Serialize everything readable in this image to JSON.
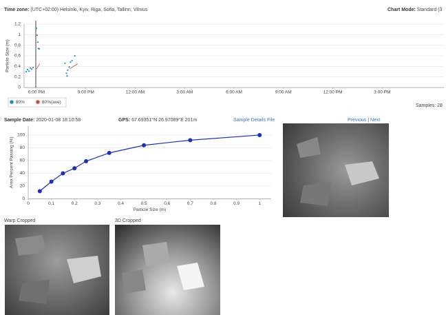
{
  "header": {
    "time_zone_label": "Time zone:",
    "time_zone": "(UTC+02:00) Helsinki, Kyiv, Riga, Sofia, Tallinn, Vilnius",
    "chart_mode_label": "Chart Mode:",
    "chart_mode": "Standard (3"
  },
  "samples": {
    "label": "Samples:",
    "value": 28
  },
  "sample": {
    "date_label": "Sample Date:",
    "date": "2020-01-08 18:10:58",
    "gps_label": "GPS:",
    "gps": "67.69351°N 26.97089°E 201m",
    "details_link": "Sample Details File",
    "previous": "Previous",
    "separator": "|",
    "next": "Next"
  },
  "images": {
    "warp": "Warp Cropped",
    "three_d": "3D Cropped"
  },
  "chart_data": [
    {
      "type": "scatter",
      "y_label": "Particle Size (m)",
      "xlim": [
        17.25,
        42.75
      ],
      "ylim": [
        0,
        1.2
      ],
      "xticks": [
        {
          "value": 18,
          "label": "6:00 PM"
        },
        {
          "value": 21,
          "label": "9:00 PM"
        },
        {
          "value": 24,
          "label": "12:00 AM"
        },
        {
          "value": 27,
          "label": "3:00 AM"
        },
        {
          "value": 30,
          "label": "6:00 AM"
        },
        {
          "value": 33,
          "label": "9:00 AM"
        },
        {
          "value": 36,
          "label": "12:00 PM"
        },
        {
          "value": 39,
          "label": "3:00 PM"
        }
      ],
      "yticks": [
        0,
        0.2,
        0.4,
        0.6,
        0.8,
        1,
        1.2
      ],
      "grid": true,
      "series": [
        {
          "name": "80%",
          "color": "#1f8fc8",
          "type": "scatter",
          "x": [
            17.38,
            17.46,
            17.55,
            17.63,
            17.71,
            17.8,
            18.0,
            18.04,
            18.08,
            18.12,
            18.17,
            19.73,
            19.82,
            19.86,
            19.9,
            19.99,
            20.07,
            20.16,
            20.33
          ],
          "values": [
            0.3,
            0.34,
            0.31,
            0.37,
            0.35,
            0.38,
            1.12,
            0.99,
            0.86,
            0.74,
            0.73,
            0.46,
            0.27,
            0.22,
            0.33,
            0.39,
            0.48,
            0.51,
            0.6
          ]
        },
        {
          "name": "80%(ave)",
          "color": "#c8503a",
          "type": "line",
          "x": [
            18.0,
            18.2,
            19.0,
            20.0,
            20.5
          ],
          "values": [
            0.35,
            0.45,
            null,
            0.35,
            0.45
          ]
        }
      ]
    },
    {
      "type": "line",
      "x_label": "Particle Size (m)",
      "y_label": "Area Percent Passing (%)",
      "xlim": [
        0,
        1.05
      ],
      "ylim": [
        0,
        114
      ],
      "xticks": [
        0,
        0.1,
        0.2,
        0.3,
        0.4,
        0.5,
        0.6,
        0.7,
        0.8,
        0.9,
        1
      ],
      "yticks": [
        0,
        20,
        40,
        60,
        80,
        100
      ],
      "grid": true,
      "series": [
        {
          "color": "#1a2fc4",
          "x": [
            0.05,
            0.1,
            0.15,
            0.2,
            0.25,
            0.35,
            0.5,
            0.7,
            1
          ],
          "values": [
            12,
            27,
            40,
            48,
            59,
            72,
            84,
            92,
            100
          ]
        }
      ]
    }
  ]
}
